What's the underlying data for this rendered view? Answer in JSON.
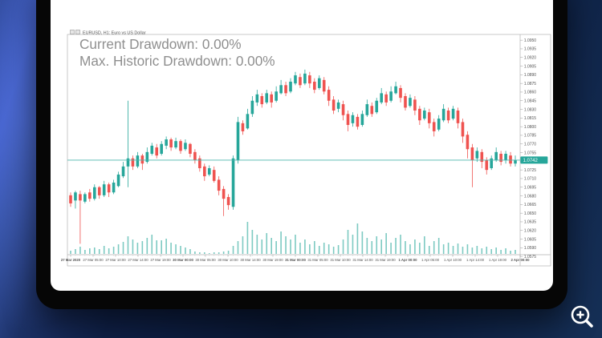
{
  "scene": {
    "drawdown_overlay": {
      "line1": "Current Drawdown: 0.00%",
      "line2": "Max. Historic Drawdown: 0.00%"
    },
    "magnifier_icon": "zoom-in-icon"
  },
  "chart_window": {
    "title": "EURUSD, H1: Euro vs US Dollar",
    "bid_price_label": "1.0742",
    "colors": {
      "bull": "#26a69a",
      "bear": "#ef5350",
      "volume": "#26a69a",
      "bid_line": "#4db6ac",
      "bid_tag_bg": "#26a69a",
      "bid_tag_text": "#ffffff",
      "frame": "#b3b3b3",
      "axis_text": "#555555",
      "overlay_text": "#8f8f8f"
    }
  },
  "chart_data": {
    "type": "candlestick",
    "symbol": "EURUSD",
    "timeframe": "H1",
    "title": "EURUSD, H1: Euro vs US Dollar",
    "current_bid": 1.0742,
    "y_range": [
      1.0575,
      1.0953
    ],
    "grid": false,
    "legend": "none",
    "y_axis_labels": [
      "1.0950",
      "1.0935",
      "1.0920",
      "1.0905",
      "1.0890",
      "1.0875",
      "1.0860",
      "1.0845",
      "1.0830",
      "1.0815",
      "1.0800",
      "1.0785",
      "1.0770",
      "1.0755",
      "1.0740",
      "1.0725",
      "1.0710",
      "1.0695",
      "1.0680",
      "1.0665",
      "1.0650",
      "1.0635",
      "1.0620",
      "1.0605",
      "1.0590",
      "1.0575"
    ],
    "x_axis_labels": [
      "27 Mar 2020",
      "27 Mar 05:00",
      "27 Mar 10:00",
      "27 Mar 14:00",
      "27 Mar 19:00",
      "30 Mar 00:00",
      "30 Mar 05:00",
      "30 Mar 10:00",
      "30 Mar 14:00",
      "30 Mar 19:00",
      "31 Mar 00:00",
      "31 Mar 05:00",
      "31 Mar 10:00",
      "31 Mar 14:00",
      "31 Mar 19:00",
      "1 Apr 00:00",
      "1 Apr 05:00",
      "1 Apr 10:00",
      "1 Apr 14:00",
      "1 Apr 19:00",
      "2 Apr 00:00"
    ],
    "candles_ohlc": [
      [
        1.0681,
        1.0686,
        1.0661,
        1.0667
      ],
      [
        1.0672,
        1.0689,
        1.0658,
        1.0686
      ],
      [
        1.0683,
        1.0689,
        1.0597,
        1.0672
      ],
      [
        1.067,
        1.0686,
        1.0667,
        1.0683
      ],
      [
        1.0686,
        1.0692,
        1.067,
        1.0675
      ],
      [
        1.0675,
        1.07,
        1.0672,
        1.0695
      ],
      [
        1.0695,
        1.0697,
        1.0675,
        1.0681
      ],
      [
        1.0681,
        1.0706,
        1.0678,
        1.07
      ],
      [
        1.07,
        1.0703,
        1.0678,
        1.0686
      ],
      [
        1.0686,
        1.0708,
        1.0683,
        1.0703
      ],
      [
        1.0697,
        1.0722,
        1.0695,
        1.0717
      ],
      [
        1.0714,
        1.0739,
        1.0711,
        1.0731
      ],
      [
        1.0731,
        1.0845,
        1.0695,
        1.0745
      ],
      [
        1.0745,
        1.075,
        1.0725,
        1.0731
      ],
      [
        1.0731,
        1.0756,
        1.0728,
        1.075
      ],
      [
        1.075,
        1.0753,
        1.0725,
        1.0736
      ],
      [
        1.0739,
        1.0764,
        1.0736,
        1.0756
      ],
      [
        1.0753,
        1.0772,
        1.075,
        1.0767
      ],
      [
        1.0764,
        1.077,
        1.0745,
        1.075
      ],
      [
        1.0753,
        1.0775,
        1.075,
        1.077
      ],
      [
        1.0767,
        1.0783,
        1.0761,
        1.0778
      ],
      [
        1.0778,
        1.0781,
        1.0758,
        1.0764
      ],
      [
        1.0764,
        1.0781,
        1.0761,
        1.0775
      ],
      [
        1.0775,
        1.0778,
        1.0753,
        1.0758
      ],
      [
        1.0761,
        1.0778,
        1.0758,
        1.0772
      ],
      [
        1.077,
        1.0772,
        1.0747,
        1.0753
      ],
      [
        1.0756,
        1.0761,
        1.0736,
        1.0742
      ],
      [
        1.0745,
        1.075,
        1.0722,
        1.0728
      ],
      [
        1.0731,
        1.0736,
        1.0706,
        1.0714
      ],
      [
        1.0717,
        1.0733,
        1.0714,
        1.0728
      ],
      [
        1.0725,
        1.0731,
        1.0703,
        1.0706
      ],
      [
        1.0708,
        1.0714,
        1.0681,
        1.0689
      ],
      [
        1.0692,
        1.0697,
        1.0645,
        1.0675
      ],
      [
        1.0678,
        1.0683,
        1.0656,
        1.0664
      ],
      [
        1.0661,
        1.075,
        1.0656,
        1.0745
      ],
      [
        1.0742,
        1.0817,
        1.0736,
        1.0808
      ],
      [
        1.0806,
        1.0811,
        1.0786,
        1.0792
      ],
      [
        1.0797,
        1.0831,
        1.0795,
        1.0822
      ],
      [
        1.0822,
        1.0853,
        1.0817,
        1.0845
      ],
      [
        1.0842,
        1.0864,
        1.0836,
        1.0856
      ],
      [
        1.0853,
        1.0858,
        1.0833,
        1.0839
      ],
      [
        1.0842,
        1.0864,
        1.0839,
        1.0858
      ],
      [
        1.0856,
        1.0861,
        1.0833,
        1.0842
      ],
      [
        1.0845,
        1.087,
        1.0842,
        1.0861
      ],
      [
        1.0858,
        1.0881,
        1.0856,
        1.0872
      ],
      [
        1.0872,
        1.0878,
        1.0853,
        1.0858
      ],
      [
        1.0861,
        1.0884,
        1.0858,
        1.0878
      ],
      [
        1.0875,
        1.0895,
        1.0872,
        1.0889
      ],
      [
        1.0886,
        1.0892,
        1.0867,
        1.0872
      ],
      [
        1.0875,
        1.0899,
        1.0872,
        1.0892
      ],
      [
        1.0889,
        1.0895,
        1.0867,
        1.0875
      ],
      [
        1.0878,
        1.0884,
        1.0858,
        1.0864
      ],
      [
        1.0867,
        1.0889,
        1.0864,
        1.0884
      ],
      [
        1.0881,
        1.0886,
        1.0856,
        1.0861
      ],
      [
        1.0864,
        1.087,
        1.0836,
        1.0845
      ],
      [
        1.0847,
        1.0853,
        1.0822,
        1.0828
      ],
      [
        1.0831,
        1.0847,
        1.0825,
        1.0842
      ],
      [
        1.0839,
        1.0845,
        1.0811,
        1.082
      ],
      [
        1.0822,
        1.0828,
        1.0792,
        1.0803
      ],
      [
        1.0806,
        1.0825,
        1.08,
        1.082
      ],
      [
        1.0817,
        1.0822,
        1.0795,
        1.08
      ],
      [
        1.0803,
        1.0828,
        1.08,
        1.0822
      ],
      [
        1.082,
        1.0847,
        1.0817,
        1.0839
      ],
      [
        1.0836,
        1.0842,
        1.0817,
        1.0822
      ],
      [
        1.0825,
        1.085,
        1.0822,
        1.0845
      ],
      [
        1.0842,
        1.0867,
        1.0839,
        1.0858
      ],
      [
        1.0856,
        1.0861,
        1.0836,
        1.0842
      ],
      [
        1.0845,
        1.087,
        1.0842,
        1.0861
      ],
      [
        1.0858,
        1.0878,
        1.0856,
        1.087
      ],
      [
        1.0867,
        1.0872,
        1.0842,
        1.085
      ],
      [
        1.0853,
        1.0858,
        1.0828,
        1.0833
      ],
      [
        1.0836,
        1.0856,
        1.0833,
        1.085
      ],
      [
        1.0847,
        1.0853,
        1.082,
        1.0828
      ],
      [
        1.0831,
        1.0836,
        1.0803,
        1.0811
      ],
      [
        1.0814,
        1.0833,
        1.0811,
        1.0828
      ],
      [
        1.0825,
        1.0831,
        1.0797,
        1.0806
      ],
      [
        1.0808,
        1.0814,
        1.0783,
        1.0792
      ],
      [
        1.0795,
        1.082,
        1.0792,
        1.0814
      ],
      [
        1.0811,
        1.0839,
        1.0808,
        1.0831
      ],
      [
        1.0828,
        1.0833,
        1.0806,
        1.0811
      ],
      [
        1.0814,
        1.0836,
        1.0811,
        1.0831
      ],
      [
        1.0828,
        1.0833,
        1.0797,
        1.0806
      ],
      [
        1.0808,
        1.0814,
        1.0772,
        1.0783
      ],
      [
        1.0786,
        1.0792,
        1.0745,
        1.0761
      ],
      [
        1.0764,
        1.077,
        1.0695,
        1.0742
      ],
      [
        1.0745,
        1.0764,
        1.0739,
        1.0758
      ],
      [
        1.0756,
        1.0761,
        1.0728,
        1.0739
      ],
      [
        1.0742,
        1.0747,
        1.0717,
        1.0725
      ],
      [
        1.0728,
        1.075,
        1.0725,
        1.0745
      ],
      [
        1.0742,
        1.0764,
        1.0739,
        1.0756
      ],
      [
        1.0753,
        1.0758,
        1.0733,
        1.0739
      ],
      [
        1.0742,
        1.0758,
        1.0736,
        1.0753
      ],
      [
        1.075,
        1.0756,
        1.0731,
        1.0736
      ],
      [
        1.0736,
        1.075,
        1.0731,
        1.0742
      ]
    ],
    "volumes": [
      4,
      6,
      9,
      5,
      7,
      8,
      6,
      10,
      7,
      9,
      12,
      15,
      22,
      18,
      14,
      16,
      20,
      24,
      17,
      17,
      19,
      14,
      12,
      10,
      8,
      6,
      3,
      2,
      2,
      1,
      2,
      2,
      3,
      4,
      10,
      16,
      22,
      40,
      30,
      24,
      18,
      26,
      20,
      16,
      28,
      22,
      18,
      24,
      14,
      18,
      12,
      16,
      10,
      14,
      12,
      9,
      11,
      18,
      30,
      24,
      38,
      28,
      20,
      16,
      22,
      18,
      26,
      14,
      20,
      24,
      16,
      12,
      18,
      14,
      22,
      10,
      16,
      20,
      12,
      14,
      10,
      13,
      9,
      12,
      8,
      10,
      7,
      9,
      6,
      8,
      5,
      7,
      4,
      5
    ]
  }
}
